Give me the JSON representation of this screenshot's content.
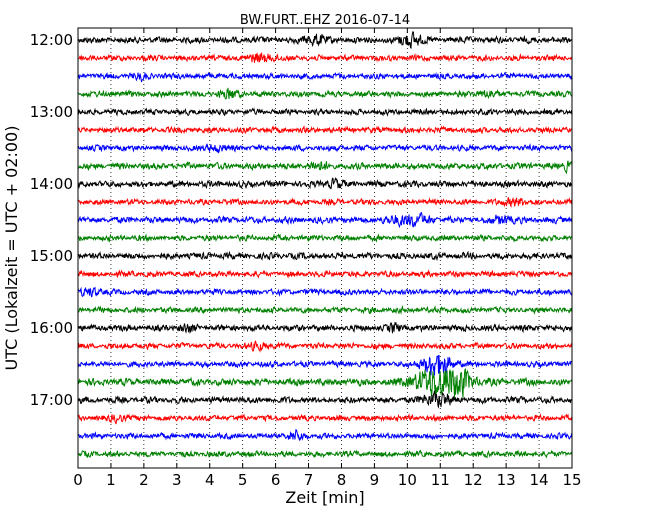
{
  "chart_data": {
    "type": "line",
    "title": "BW.FURT..EHZ 2016-07-14",
    "xlabel": "Zeit  [min]",
    "ylabel": "UTC (Lokalzeit = UTC + 02:00)",
    "xlim": [
      0,
      15
    ],
    "x_ticks": [
      0,
      1,
      2,
      3,
      4,
      5,
      6,
      7,
      8,
      9,
      10,
      11,
      12,
      13,
      14,
      15
    ],
    "x_tick_labels": [
      "0",
      "1",
      "2",
      "3",
      "4",
      "5",
      "6",
      "7",
      "8",
      "9",
      "10",
      "11",
      "12",
      "13",
      "14",
      "15"
    ],
    "y_tick_labels": [
      "12:00",
      "13:00",
      "14:00",
      "15:00",
      "16:00",
      "17:00"
    ],
    "grid": true,
    "trace_colors": [
      "#000000",
      "#ff0000",
      "#0000ff",
      "#008000"
    ],
    "traces": [
      {
        "start": "12:00",
        "amplitude": 1.0,
        "events": [
          {
            "t": 7.2,
            "amp": 1.8,
            "dur": 0.6
          },
          {
            "t": 10.1,
            "amp": 2.6,
            "dur": 0.6
          }
        ]
      },
      {
        "start": "12:15",
        "amplitude": 0.9,
        "events": [
          {
            "t": 5.6,
            "amp": 1.5,
            "dur": 0.8
          }
        ]
      },
      {
        "start": "12:30",
        "amplitude": 0.9,
        "events": [
          {
            "t": 1.9,
            "amp": 1.2,
            "dur": 0.4
          }
        ]
      },
      {
        "start": "12:45",
        "amplitude": 0.9,
        "events": [
          {
            "t": 4.6,
            "amp": 1.4,
            "dur": 0.6
          },
          {
            "t": 12.4,
            "amp": 1.2,
            "dur": 0.5
          }
        ]
      },
      {
        "start": "13:00",
        "amplitude": 0.9,
        "events": []
      },
      {
        "start": "13:15",
        "amplitude": 0.9,
        "events": []
      },
      {
        "start": "13:30",
        "amplitude": 0.9,
        "events": [
          {
            "t": 4.2,
            "amp": 1.2,
            "dur": 0.5
          }
        ]
      },
      {
        "start": "13:45",
        "amplitude": 1.0,
        "events": [
          {
            "t": 7.3,
            "amp": 1.3,
            "dur": 0.6
          },
          {
            "t": 14.9,
            "amp": 1.6,
            "dur": 0.3
          }
        ]
      },
      {
        "start": "14:00",
        "amplitude": 1.0,
        "events": [
          {
            "t": 7.8,
            "amp": 1.3,
            "dur": 0.5
          }
        ]
      },
      {
        "start": "14:15",
        "amplitude": 0.9,
        "events": [
          {
            "t": 13.3,
            "amp": 1.4,
            "dur": 0.6
          }
        ]
      },
      {
        "start": "14:30",
        "amplitude": 1.0,
        "events": [
          {
            "t": 10.1,
            "amp": 1.9,
            "dur": 1.2
          },
          {
            "t": 12.9,
            "amp": 1.3,
            "dur": 0.6
          }
        ]
      },
      {
        "start": "14:45",
        "amplitude": 0.9,
        "events": []
      },
      {
        "start": "15:00",
        "amplitude": 1.0,
        "events": []
      },
      {
        "start": "15:15",
        "amplitude": 0.9,
        "events": []
      },
      {
        "start": "15:30",
        "amplitude": 0.9,
        "events": [
          {
            "t": 0.4,
            "amp": 1.4,
            "dur": 0.5
          }
        ]
      },
      {
        "start": "15:45",
        "amplitude": 0.9,
        "events": []
      },
      {
        "start": "16:00",
        "amplitude": 1.0,
        "events": [
          {
            "t": 3.3,
            "amp": 1.3,
            "dur": 0.4
          },
          {
            "t": 9.6,
            "amp": 1.3,
            "dur": 0.3
          }
        ]
      },
      {
        "start": "16:15",
        "amplitude": 0.9,
        "events": [
          {
            "t": 5.5,
            "amp": 1.2,
            "dur": 0.5
          }
        ]
      },
      {
        "start": "16:30",
        "amplitude": 0.9,
        "events": [
          {
            "t": 10.9,
            "amp": 4.5,
            "dur": 0.9
          }
        ]
      },
      {
        "start": "16:45",
        "amplitude": 1.1,
        "events": [
          {
            "t": 11.0,
            "amp": 5.5,
            "dur": 1.6
          },
          {
            "t": 11.6,
            "amp": 2.3,
            "dur": 0.6
          }
        ]
      },
      {
        "start": "17:00",
        "amplitude": 1.0,
        "events": [
          {
            "t": 10.9,
            "amp": 2.6,
            "dur": 0.8
          }
        ]
      },
      {
        "start": "17:15",
        "amplitude": 0.9,
        "events": [
          {
            "t": 1.2,
            "amp": 1.3,
            "dur": 0.4
          }
        ]
      },
      {
        "start": "17:30",
        "amplitude": 0.9,
        "events": [
          {
            "t": 6.6,
            "amp": 1.4,
            "dur": 0.5
          }
        ]
      },
      {
        "start": "17:45",
        "amplitude": 0.9,
        "events": []
      }
    ]
  }
}
